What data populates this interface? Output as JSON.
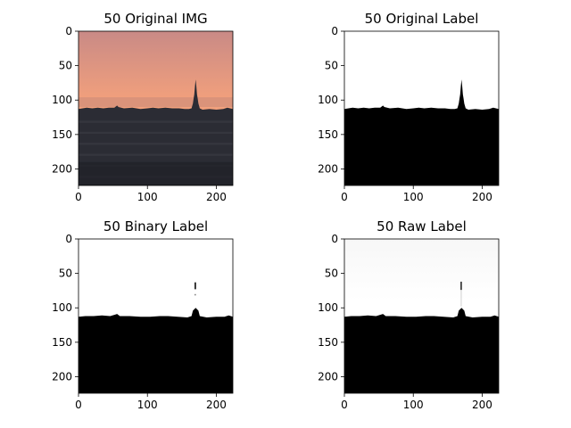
{
  "figure": {
    "panels": [
      {
        "title": "50 Original IMG",
        "kind": "photo"
      },
      {
        "title": "50 Original Label",
        "kind": "original_label"
      },
      {
        "title": "50 Binary Label",
        "kind": "binary_label"
      },
      {
        "title": "50 Raw Label",
        "kind": "raw_label"
      }
    ]
  },
  "chart_data": [
    {
      "type": "heatmap",
      "title": "50 Original IMG",
      "x_ticks": [
        0,
        100,
        200
      ],
      "y_ticks": [
        0,
        50,
        100,
        150,
        200
      ],
      "xlim": [
        0,
        224
      ],
      "ylim": [
        224,
        0
      ],
      "grid": false
    },
    {
      "type": "heatmap",
      "title": "50 Original Label",
      "x_ticks": [
        0,
        100,
        200
      ],
      "y_ticks": [
        0,
        50,
        100,
        150,
        200
      ],
      "xlim": [
        0,
        224
      ],
      "ylim": [
        224,
        0
      ],
      "grid": false
    },
    {
      "type": "heatmap",
      "title": "50 Binary Label",
      "x_ticks": [
        0,
        100,
        200
      ],
      "y_ticks": [
        0,
        50,
        100,
        150,
        200
      ],
      "xlim": [
        0,
        224
      ],
      "ylim": [
        224,
        0
      ],
      "grid": false
    },
    {
      "type": "heatmap",
      "title": "50 Raw Label",
      "x_ticks": [
        0,
        100,
        200
      ],
      "y_ticks": [
        0,
        50,
        100,
        150,
        200
      ],
      "xlim": [
        0,
        224
      ],
      "ylim": [
        224,
        0
      ],
      "grid": false
    }
  ],
  "colors": {
    "sky_top": "#c98a86",
    "sky_mid": "#f2a07c",
    "sky_low": "#e8a07a",
    "city": "#2b2c34",
    "mask": "#000000",
    "background": "#ffffff"
  }
}
